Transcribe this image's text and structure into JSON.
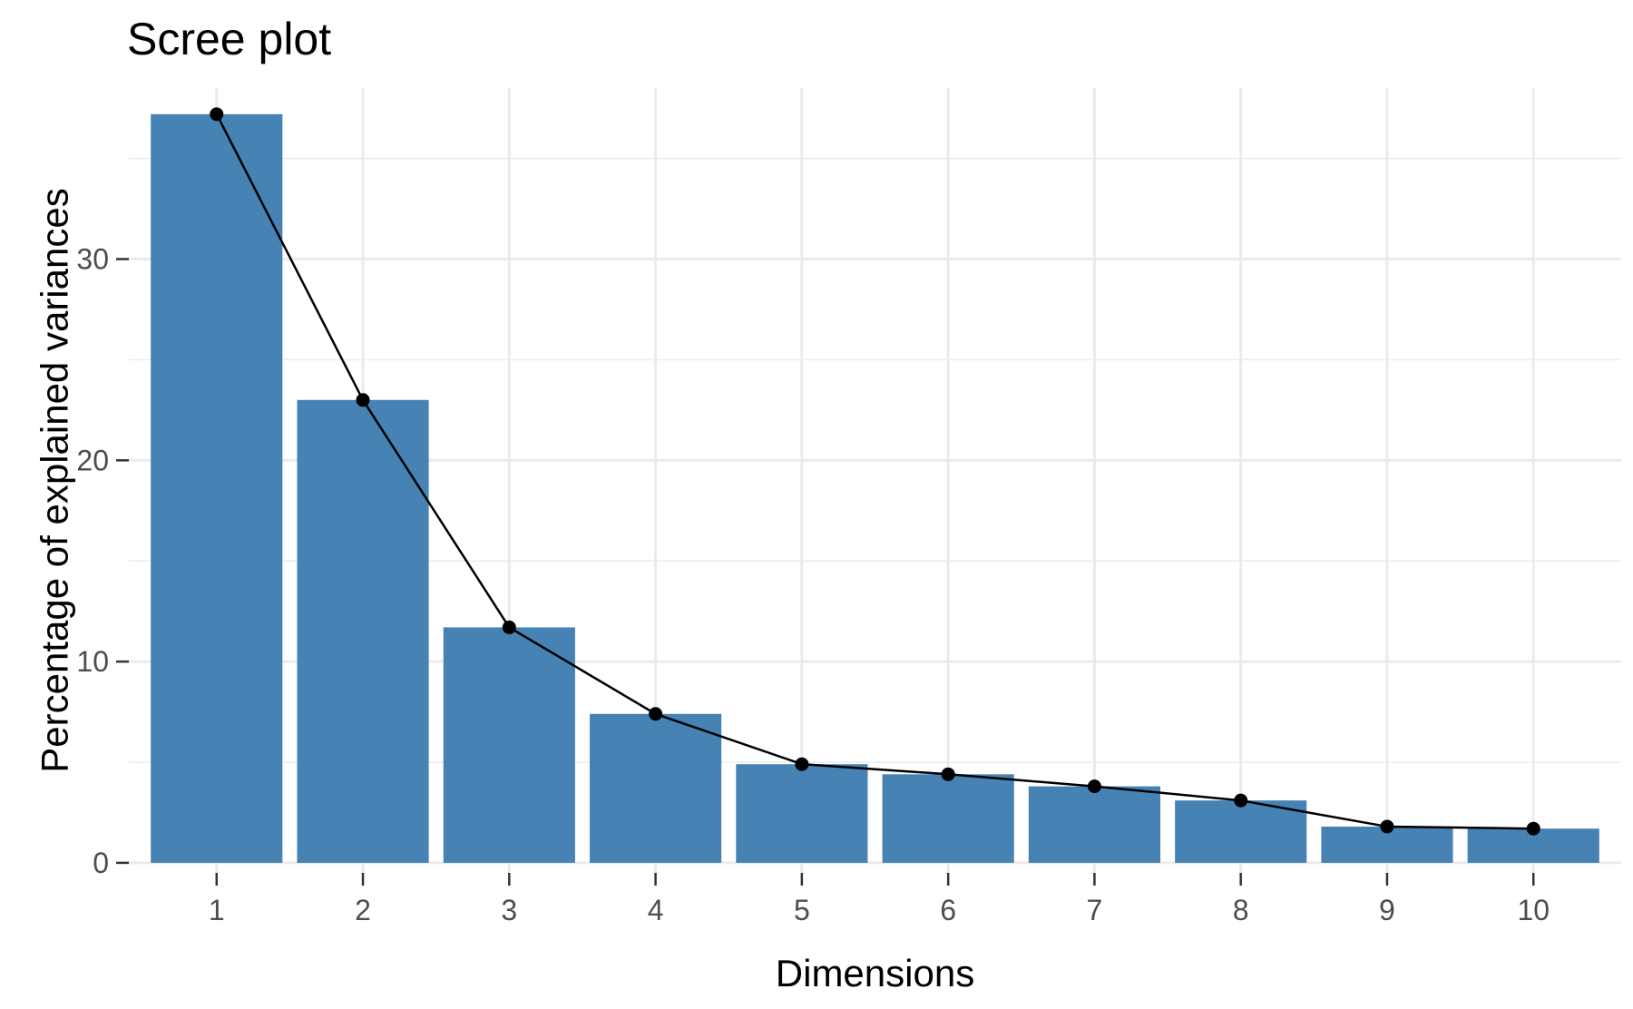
{
  "chart_data": {
    "type": "bar",
    "title": "Scree plot",
    "xlabel": "Dimensions",
    "ylabel": "Percentage of explained variances",
    "categories": [
      "1",
      "2",
      "3",
      "4",
      "5",
      "6",
      "7",
      "8",
      "9",
      "10"
    ],
    "values": [
      37.2,
      23.0,
      11.7,
      7.4,
      4.9,
      4.4,
      3.8,
      3.1,
      1.8,
      1.7
    ],
    "ylim": [
      -0.5,
      38.5
    ],
    "yticks": [
      0,
      10,
      20,
      30
    ],
    "yticks_labels": [
      "0",
      "10",
      "20",
      "30"
    ],
    "line_overlay": true,
    "grid": true,
    "colors": {
      "bar": "#4682B4",
      "line": "#000000",
      "grid": "#ebebeb",
      "background": "#ffffff"
    }
  }
}
